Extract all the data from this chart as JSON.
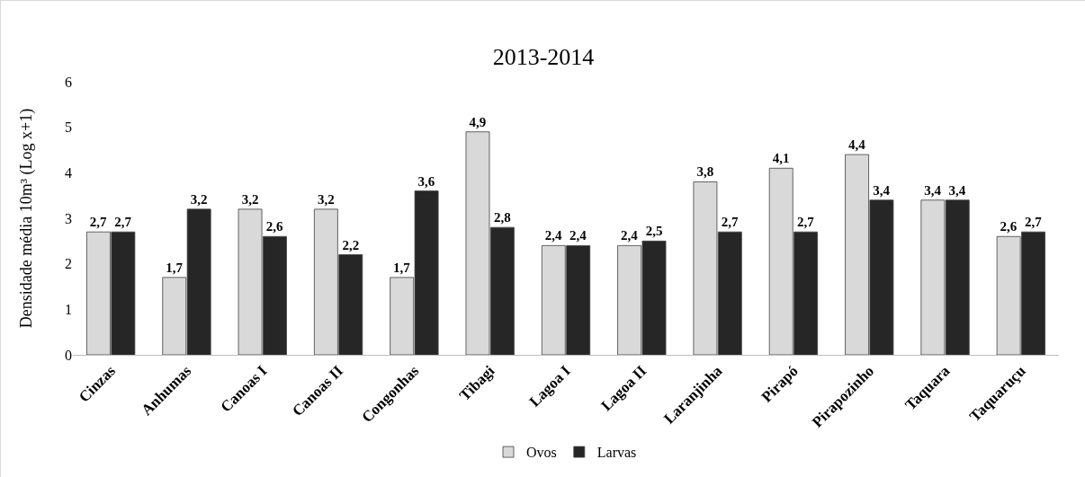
{
  "chart_data": {
    "type": "bar",
    "title": "2013-2014",
    "ylabel": "Densidade média 10m³ (Log x+1)",
    "categories": [
      "Cinzas",
      "Anhumas",
      "Canoas I",
      "Canoas II",
      "Congonhas",
      "Tibagi",
      "Lagoa I",
      "Lagoa II",
      "Laranjinha",
      "Pirapó",
      "Pirapozinho",
      "Taquara",
      "Taquaruçu"
    ],
    "series": [
      {
        "name": "Ovos",
        "color": "#d9d9d9",
        "values": [
          2.7,
          1.7,
          3.2,
          3.2,
          1.7,
          4.9,
          2.4,
          2.4,
          3.8,
          4.1,
          4.4,
          3.4,
          2.6
        ],
        "value_labels": [
          "2,7",
          "1,7",
          "3,2",
          "3,2",
          "1,7",
          "4,9",
          "2,4",
          "2,4",
          "3,8",
          "4,1",
          "4,4",
          "3,4",
          "2,6"
        ]
      },
      {
        "name": "Larvas",
        "color": "#262626",
        "values": [
          2.7,
          3.2,
          2.6,
          2.2,
          3.6,
          2.8,
          2.4,
          2.5,
          2.7,
          2.7,
          3.4,
          3.4,
          2.7
        ],
        "value_labels": [
          "2,7",
          "3,2",
          "2,6",
          "2,2",
          "3,6",
          "2,8",
          "2,4",
          "2,5",
          "2,7",
          "2,7",
          "3,4",
          "3,4",
          "2,7"
        ]
      }
    ],
    "ylim": [
      0,
      6
    ],
    "yticks": [
      0,
      1,
      2,
      3,
      4,
      5,
      6
    ],
    "grid": false,
    "legend": "bottom"
  }
}
